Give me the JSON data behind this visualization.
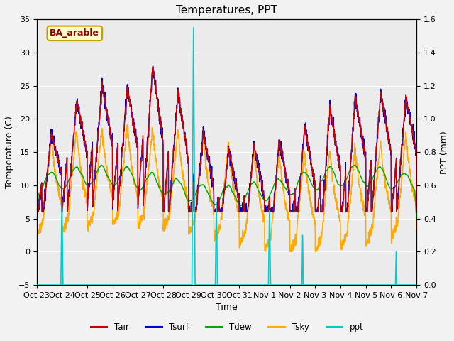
{
  "title": "Temperatures, PPT",
  "xlabel": "Time",
  "ylabel_left": "Temperature (C)",
  "ylabel_right": "PPT (mm)",
  "legend_label": "BA_arable",
  "xlim": [
    0,
    15
  ],
  "ylim_left": [
    -5,
    35
  ],
  "ylim_right": [
    0.0,
    1.6
  ],
  "yticks_left": [
    -5,
    0,
    5,
    10,
    15,
    20,
    25,
    30,
    35
  ],
  "yticks_right": [
    0.0,
    0.2,
    0.4,
    0.6,
    0.8,
    1.0,
    1.2,
    1.4,
    1.6
  ],
  "xtick_labels": [
    "Oct 23",
    "Oct 24",
    "Oct 25",
    "Oct 26",
    "Oct 27",
    "Oct 28",
    "Oct 29",
    "Oct 30",
    "Oct 31",
    "Nov 1",
    "Nov 2",
    "Nov 3",
    "Nov 4",
    "Nov 5",
    "Nov 6",
    "Nov 7"
  ],
  "colors": {
    "tair": "#cc0000",
    "tsurf": "#0000cc",
    "tdew": "#00aa00",
    "tsky": "#ffaa00",
    "ppt": "#00cccc"
  },
  "linewidth": 1.0,
  "background_color": "#ebebeb",
  "grid_color": "#ffffff",
  "fig_bg": "#f2f2f2",
  "legend_box_facecolor": "#ffffcc",
  "legend_box_edgecolor": "#cc9900"
}
